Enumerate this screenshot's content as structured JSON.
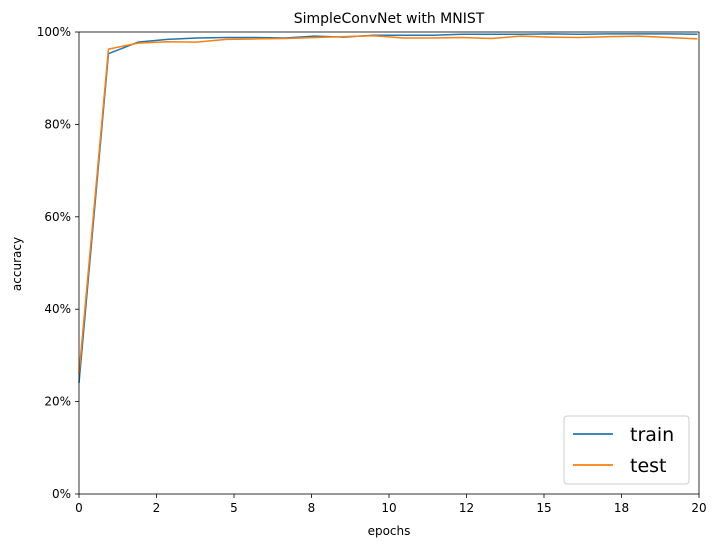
{
  "chart_data": {
    "type": "line",
    "title": "SimpleConvNet with MNIST",
    "xlabel": "epochs",
    "ylabel": "accuracy",
    "xlim": [
      0,
      20
    ],
    "ylim": [
      0,
      1.0
    ],
    "x_ticks": [
      0,
      2.5,
      5,
      7.5,
      10,
      12.5,
      15,
      17.5,
      20
    ],
    "x_tick_labels": [
      "0",
      "2",
      "5",
      "8",
      "10",
      "12",
      "15",
      "18",
      "20"
    ],
    "y_ticks": [
      0,
      0.2,
      0.4,
      0.6,
      0.8,
      1.0
    ],
    "y_tick_labels": [
      "0%",
      "20%",
      "40%",
      "60%",
      "80%",
      "100%"
    ],
    "legend_position": "lower-right",
    "grid": false,
    "x": [
      0,
      0.95,
      1.9,
      2.85,
      3.8,
      4.75,
      5.7,
      6.65,
      7.6,
      8.55,
      9.5,
      10.45,
      11.4,
      12.35,
      13.3,
      14.25,
      15.2,
      16.15,
      17.1,
      18.05,
      19.0,
      19.95
    ],
    "series": [
      {
        "name": "train",
        "color": "#1f77b4",
        "values": [
          0.24,
          0.953,
          0.978,
          0.984,
          0.987,
          0.988,
          0.988,
          0.987,
          0.991,
          0.989,
          0.993,
          0.993,
          0.993,
          0.995,
          0.995,
          0.995,
          0.996,
          0.995,
          0.996,
          0.996,
          0.996,
          0.995
        ]
      },
      {
        "name": "test",
        "color": "#ff7f0e",
        "values": [
          0.26,
          0.963,
          0.976,
          0.979,
          0.978,
          0.984,
          0.985,
          0.986,
          0.988,
          0.99,
          0.992,
          0.987,
          0.987,
          0.988,
          0.986,
          0.991,
          0.989,
          0.988,
          0.99,
          0.991,
          0.988,
          0.985
        ]
      }
    ]
  }
}
